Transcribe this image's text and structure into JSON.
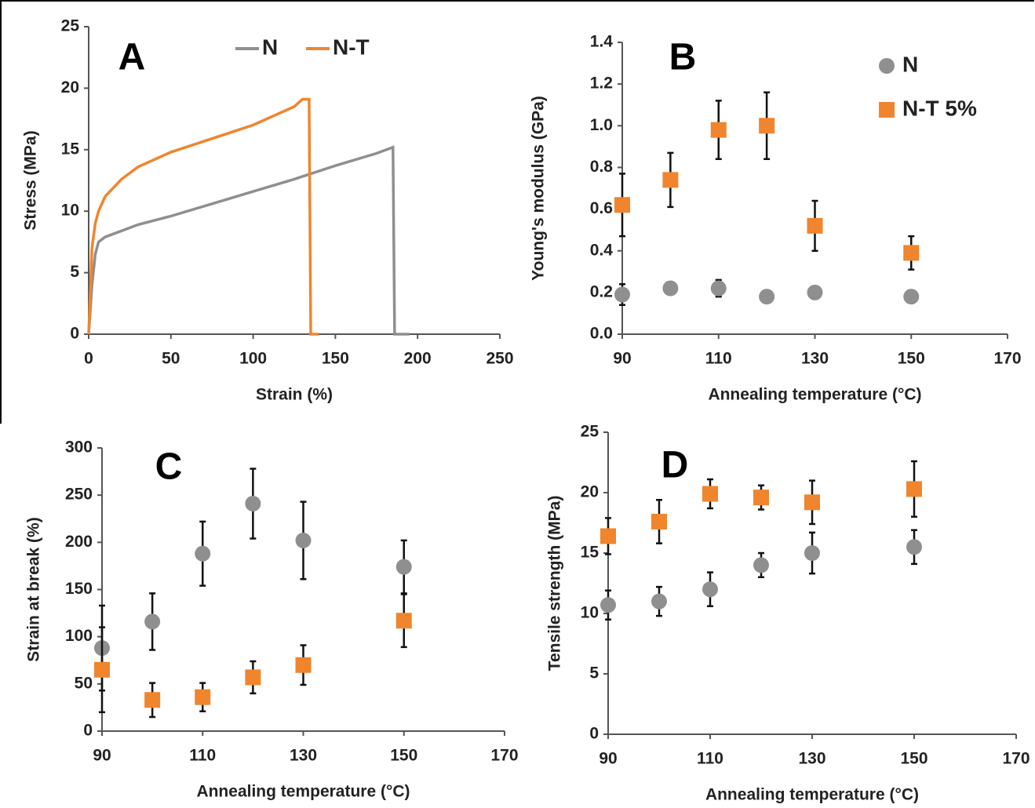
{
  "chart_data": [
    {
      "type": "line",
      "panel": "A",
      "xlabel": "Strain (%)",
      "ylabel": "Stress (MPa)",
      "xlim": [
        0,
        250
      ],
      "ylim": [
        0,
        25
      ],
      "xticks": [
        0,
        50,
        100,
        150,
        200,
        250
      ],
      "yticks": [
        0,
        5,
        10,
        15,
        20,
        25
      ],
      "legend": "top",
      "series": [
        {
          "name": "N",
          "color": "#8f8f8f",
          "x": [
            0,
            2,
            4,
            6,
            10,
            20,
            30,
            50,
            75,
            100,
            125,
            150,
            175,
            185,
            186,
            195
          ],
          "values": [
            0,
            4,
            6.5,
            7.5,
            7.9,
            8.4,
            8.9,
            9.6,
            10.6,
            11.6,
            12.6,
            13.7,
            14.7,
            15.2,
            0,
            0
          ]
        },
        {
          "name": "N-T",
          "color": "#f0852d",
          "x": [
            0,
            2,
            4,
            6,
            10,
            20,
            30,
            50,
            75,
            100,
            125,
            130,
            134,
            135,
            140
          ],
          "values": [
            0,
            7,
            9,
            10,
            11.2,
            12.6,
            13.6,
            14.8,
            15.9,
            17.0,
            18.5,
            19.1,
            19.1,
            0,
            0
          ]
        }
      ]
    },
    {
      "type": "scatter",
      "panel": "B",
      "xlabel": "Annealing temperature (°C)",
      "ylabel": "Young's modulus (GPa)",
      "xlim": [
        90,
        170
      ],
      "ylim": [
        0,
        1.4
      ],
      "xticks": [
        90,
        110,
        130,
        150,
        170
      ],
      "yticks": [
        {
          "value": 0,
          "label": "0.0"
        },
        0.2,
        0.4,
        0.6,
        0.8,
        {
          "value": 1,
          "label": "1.0"
        },
        1.2,
        1.4
      ],
      "legend": "top-right",
      "x": [
        90,
        100,
        110,
        120,
        130,
        150
      ],
      "series": [
        {
          "name": "N",
          "color": "#8f8f8f",
          "marker": "circle",
          "values": [
            0.19,
            0.22,
            0.22,
            0.18,
            0.2,
            0.18
          ],
          "errors": [
            0.05,
            0.02,
            0.04,
            0.01,
            0.02,
            0.02
          ]
        },
        {
          "name": "N-T 5%",
          "color": "#f0852d",
          "marker": "square",
          "values": [
            0.62,
            0.74,
            0.98,
            1.0,
            0.52,
            0.39
          ],
          "errors": [
            0.15,
            0.13,
            0.14,
            0.16,
            0.12,
            0.08
          ]
        }
      ]
    },
    {
      "type": "scatter",
      "panel": "C",
      "xlabel": "Annealing temperature (°C)",
      "ylabel": "Strain  at break (%)",
      "xlim": [
        90,
        170
      ],
      "ylim": [
        0,
        300
      ],
      "xticks": [
        90,
        110,
        130,
        150,
        170
      ],
      "yticks": [
        0,
        50,
        100,
        150,
        200,
        250,
        300
      ],
      "x": [
        90,
        100,
        110,
        120,
        130,
        150
      ],
      "series": [
        {
          "name": "N",
          "color": "#8f8f8f",
          "marker": "circle",
          "values": [
            88,
            116,
            188,
            241,
            202,
            174
          ],
          "errors": [
            45,
            30,
            34,
            37,
            41,
            28
          ]
        },
        {
          "name": "N-T 5%",
          "color": "#f0852d",
          "marker": "square",
          "values": [
            65,
            33,
            36,
            57,
            70,
            117
          ],
          "errors": [
            45,
            18,
            15,
            17,
            21,
            28
          ]
        }
      ]
    },
    {
      "type": "scatter",
      "panel": "D",
      "xlabel": "Annealing temperature (°C)",
      "ylabel": "Tensile  strength (MPa)",
      "xlim": [
        90,
        170
      ],
      "ylim": [
        0,
        25
      ],
      "xticks": [
        90,
        110,
        130,
        150,
        170
      ],
      "yticks": [
        0,
        5,
        10,
        15,
        20,
        25
      ],
      "x": [
        90,
        100,
        110,
        120,
        130,
        150
      ],
      "series": [
        {
          "name": "N",
          "color": "#8f8f8f",
          "marker": "circle",
          "values": [
            10.7,
            11.0,
            12.0,
            14.0,
            15.0,
            15.5
          ],
          "errors": [
            1.2,
            1.2,
            1.4,
            1.0,
            1.7,
            1.4
          ]
        },
        {
          "name": "N-T 5%",
          "color": "#f0852d",
          "marker": "square",
          "values": [
            16.4,
            17.6,
            19.9,
            19.6,
            19.2,
            20.3
          ],
          "errors": [
            1.5,
            1.8,
            1.2,
            1.0,
            1.8,
            2.3
          ]
        }
      ]
    }
  ]
}
